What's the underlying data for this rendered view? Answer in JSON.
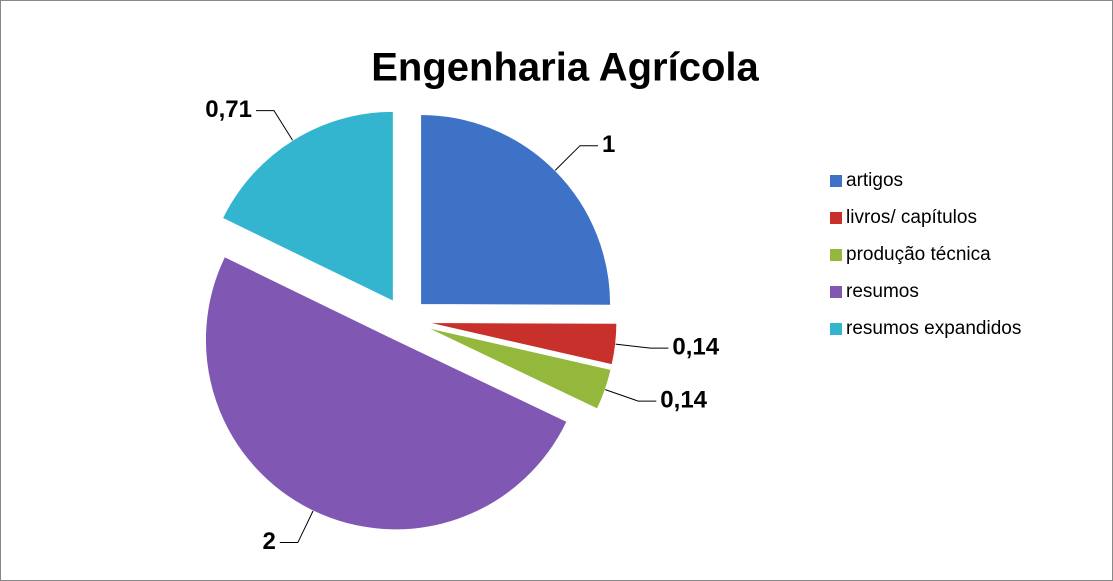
{
  "chart_data": {
    "type": "pie",
    "title": "Engenharia Agrícola",
    "categories": [
      "artigos",
      "livros/ capítulos",
      "produção técnica",
      "resumos",
      "resumos expandidos"
    ],
    "values": [
      1,
      0.14,
      0.14,
      2,
      0.71
    ],
    "value_labels": [
      "1",
      "0,14",
      "0,14",
      "2",
      "0,71"
    ],
    "colors": [
      "#3d72c6",
      "#c8302c",
      "#93b83c",
      "#8058b4",
      "#33b5d0"
    ],
    "legend": "right"
  }
}
